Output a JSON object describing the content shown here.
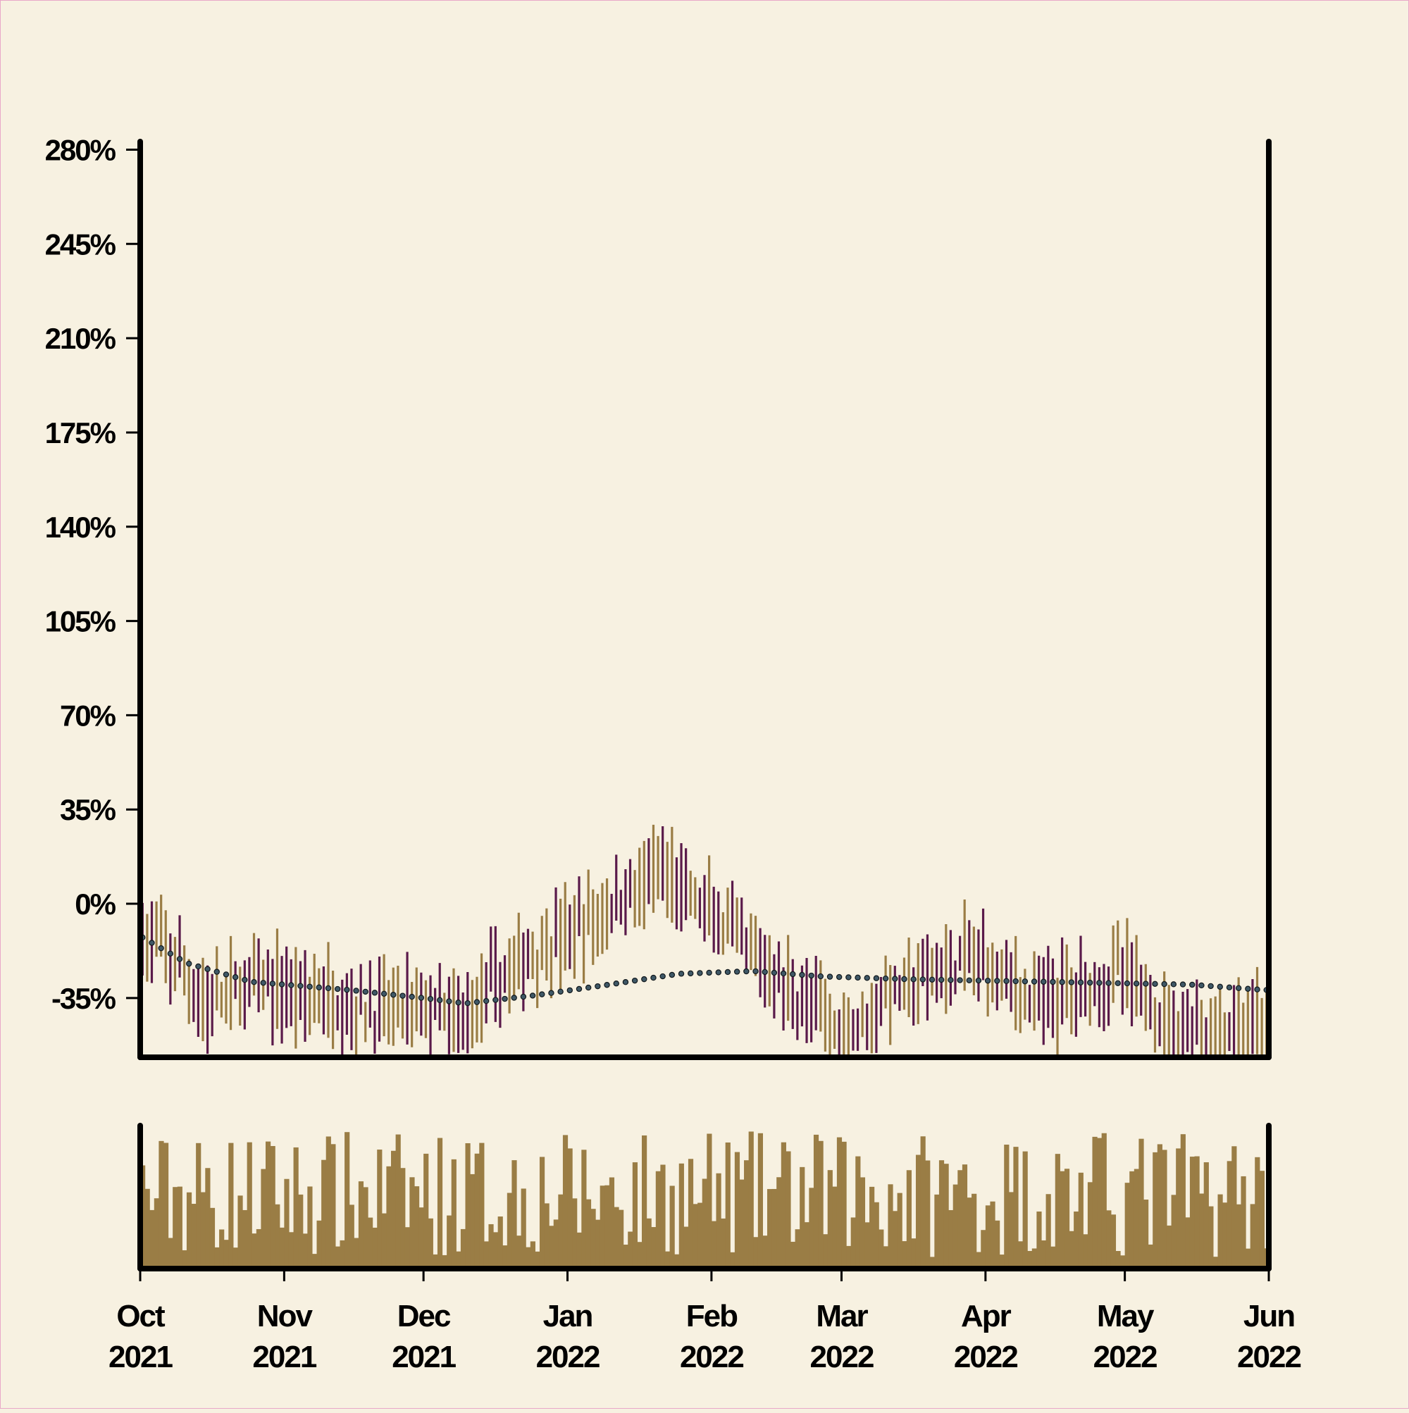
{
  "chart_data": {
    "type": "ohlc",
    "title": "",
    "xlabel": "",
    "ylabel": "",
    "y_axis": {
      "range": [
        "-57%",
        "283%"
      ],
      "ticks": [
        {
          "value": -35,
          "label": "-35%"
        },
        {
          "value": 0,
          "label": "0%"
        },
        {
          "value": 35,
          "label": "35%"
        },
        {
          "value": 70,
          "label": "70%"
        },
        {
          "value": 105,
          "label": "105%"
        },
        {
          "value": 140,
          "label": "140%"
        },
        {
          "value": 175,
          "label": "175%"
        },
        {
          "value": 210,
          "label": "210%"
        },
        {
          "value": 245,
          "label": "245%"
        },
        {
          "value": 280,
          "label": "280%"
        }
      ]
    },
    "x_axis": {
      "range": [
        "2021-10-01",
        "2022-06-01"
      ],
      "ticks": [
        {
          "date": "2021-10-01",
          "month": "Oct",
          "year": "2021"
        },
        {
          "date": "2021-11-01",
          "month": "Nov",
          "year": "2021"
        },
        {
          "date": "2021-12-01",
          "month": "Dec",
          "year": "2021"
        },
        {
          "date": "2022-01-01",
          "month": "Jan",
          "year": "2022"
        },
        {
          "date": "2022-02-01",
          "month": "Feb",
          "year": "2022"
        },
        {
          "date": "2022-03-01",
          "month": "Mar",
          "year": "2022"
        },
        {
          "date": "2022-04-01",
          "month": "Apr",
          "year": "2022"
        },
        {
          "date": "2022-05-01",
          "month": "May",
          "year": "2022"
        },
        {
          "date": "2022-06-01",
          "month": "Jun",
          "year": "2022"
        }
      ]
    },
    "grid": false,
    "colors": {
      "background": "#f7f1e1",
      "up": "#9a7d45",
      "down": "#5a1a4a",
      "moving_average": "#22343c",
      "volume": "#9a7d45"
    },
    "trend_anchors_percent": [
      {
        "date": "2021-10-01",
        "value": -12
      },
      {
        "date": "2021-10-11",
        "value": -22
      },
      {
        "date": "2021-10-25",
        "value": -29
      },
      {
        "date": "2021-11-15",
        "value": -32
      },
      {
        "date": "2021-12-01",
        "value": -35
      },
      {
        "date": "2021-12-10",
        "value": -37
      },
      {
        "date": "2021-12-25",
        "value": -34
      },
      {
        "date": "2022-01-10",
        "value": -30
      },
      {
        "date": "2022-01-25",
        "value": -26
      },
      {
        "date": "2022-02-10",
        "value": -25
      },
      {
        "date": "2022-02-25",
        "value": -27
      },
      {
        "date": "2022-03-15",
        "value": -28
      },
      {
        "date": "2022-04-15",
        "value": -29
      },
      {
        "date": "2022-05-15",
        "value": -30
      },
      {
        "date": "2022-05-31",
        "value": -32
      }
    ],
    "price_anchors_percent": [
      {
        "date": "2021-10-01",
        "value": -12
      },
      {
        "date": "2021-10-08",
        "value": -20
      },
      {
        "date": "2021-10-15",
        "value": -38
      },
      {
        "date": "2021-10-25",
        "value": -30
      },
      {
        "date": "2021-11-10",
        "value": -35
      },
      {
        "date": "2021-11-20",
        "value": -40
      },
      {
        "date": "2021-12-01",
        "value": -38
      },
      {
        "date": "2021-12-08",
        "value": -45
      },
      {
        "date": "2021-12-15",
        "value": -32
      },
      {
        "date": "2021-12-25",
        "value": -18
      },
      {
        "date": "2022-01-05",
        "value": -8
      },
      {
        "date": "2022-01-15",
        "value": 5
      },
      {
        "date": "2022-01-22",
        "value": 10
      },
      {
        "date": "2022-02-01",
        "value": -5
      },
      {
        "date": "2022-02-10",
        "value": -20
      },
      {
        "date": "2022-02-20",
        "value": -35
      },
      {
        "date": "2022-03-01",
        "value": -48
      },
      {
        "date": "2022-03-10",
        "value": -35
      },
      {
        "date": "2022-03-20",
        "value": -28
      },
      {
        "date": "2022-03-28",
        "value": -20
      },
      {
        "date": "2022-04-05",
        "value": -25
      },
      {
        "date": "2022-04-12",
        "value": -38
      },
      {
        "date": "2022-04-22",
        "value": -30
      },
      {
        "date": "2022-04-30",
        "value": -25
      },
      {
        "date": "2022-05-10",
        "value": -42
      },
      {
        "date": "2022-05-20",
        "value": -48
      },
      {
        "date": "2022-05-31",
        "value": -45
      }
    ],
    "volume_panel": {
      "axis_labels": false
    }
  }
}
